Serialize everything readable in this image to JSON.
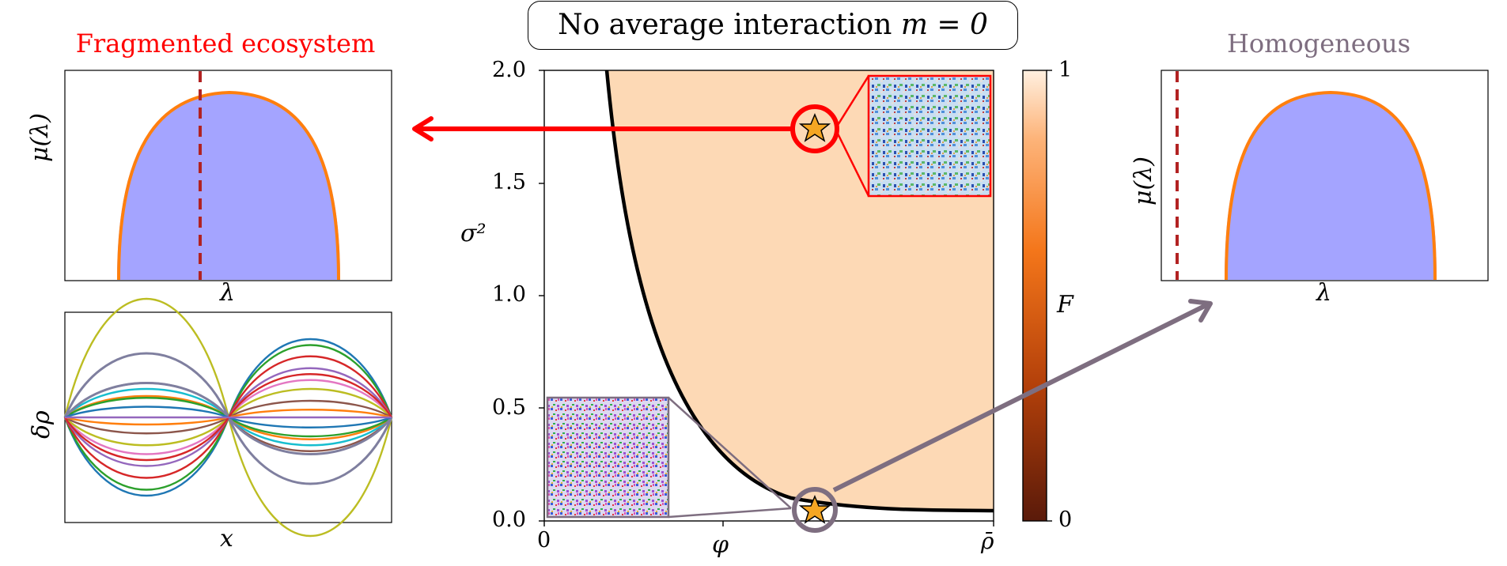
{
  "header": {
    "title_text": "No average interaction ",
    "title_math": "m = 0"
  },
  "left_panel": {
    "title": "Fragmented ecosystem",
    "top_ylabel": "μ(λ)",
    "top_xlabel": "λ",
    "bottom_ylabel": "δρ",
    "bottom_xlabel": "x"
  },
  "right_panel": {
    "title": "Homogeneous",
    "ylabel": "μ(λ)",
    "xlabel": "λ"
  },
  "phase_diagram": {
    "ylabel": "σ²",
    "xlabel": "φ",
    "x_end_label": "ρ̄",
    "y_ticks": [
      "0.0",
      "0.5",
      "1.0",
      "1.5",
      "2.0"
    ],
    "x_tick_zero": "0",
    "colorbar_label": "F",
    "colorbar_ticks": [
      "0",
      "1"
    ]
  },
  "colors": {
    "fragmented": "#ff0000",
    "homogeneous": "#7e6e80",
    "region_fill": "#fdd9b5",
    "histogram": "#9a9aff",
    "fit_curve": "#ff7f0e",
    "dashed_line": "#b22222"
  },
  "chart_data": [
    {
      "type": "area",
      "name_of_panel": "phase diagram",
      "ylim": [
        0,
        2
      ],
      "boundary_curve": "sigma2 decreasing hyperbola in phi"
    },
    {
      "type": "bar",
      "name_of_panel": "spectrum fragmented",
      "shape": "semicircle",
      "threshold_position": "inside bulk"
    },
    {
      "type": "bar",
      "name_of_panel": "spectrum homogeneous",
      "shape": "semicircle",
      "threshold_position": "left of bulk"
    },
    {
      "type": "line",
      "name_of_panel": "delta rho modes",
      "shape": "sinusoids with nodes at x ends and center"
    }
  ]
}
